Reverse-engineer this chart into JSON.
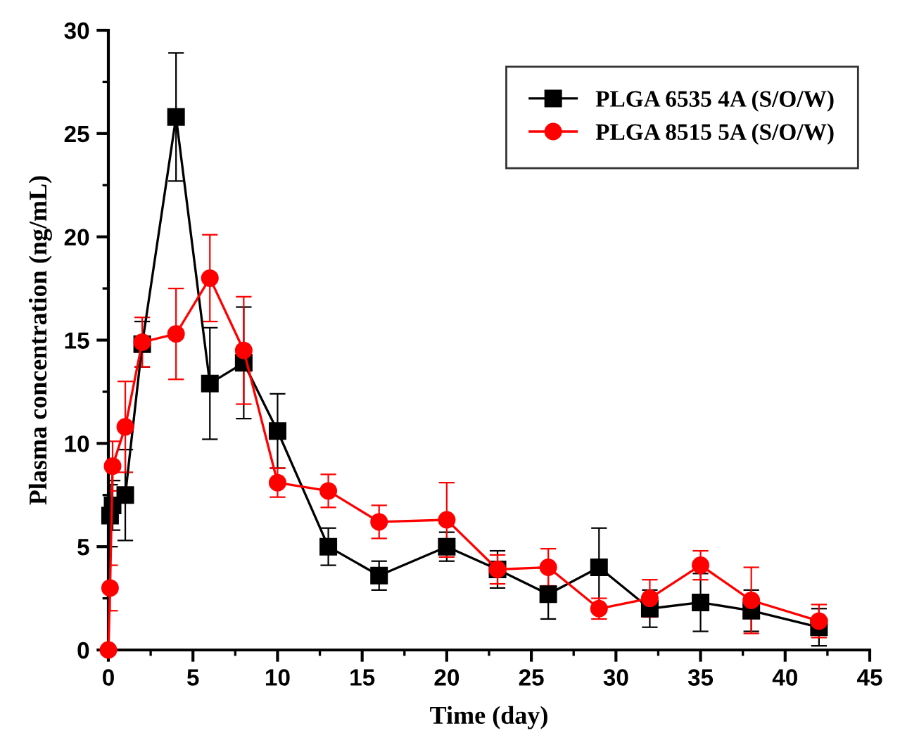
{
  "chart_data": {
    "type": "line",
    "xlabel": "Time (day)",
    "ylabel": "Plasma concentration (ng/mL)",
    "xlim": [
      0,
      45
    ],
    "ylim": [
      0,
      30
    ],
    "xticks": [
      0,
      5,
      10,
      15,
      20,
      25,
      30,
      35,
      40,
      45
    ],
    "yticks": [
      0,
      5,
      10,
      15,
      20,
      25,
      30
    ],
    "grid": false,
    "legend": "top right",
    "series": [
      {
        "name": "PLGA 6535 4A (S/O/W)",
        "color": "#000000",
        "marker": "square",
        "x": [
          0.1,
          0.25,
          1,
          2,
          4,
          6,
          8,
          10,
          13,
          16,
          20,
          23,
          26,
          29,
          32,
          35,
          38,
          42
        ],
        "values": [
          6.5,
          7.0,
          7.5,
          14.8,
          25.8,
          12.9,
          13.9,
          10.6,
          5.0,
          3.6,
          5.0,
          3.9,
          2.7,
          4.0,
          2.0,
          2.3,
          1.9,
          1.1
        ],
        "errors": [
          1.5,
          1.2,
          2.2,
          1.1,
          3.1,
          2.7,
          2.7,
          1.8,
          0.9,
          0.7,
          0.7,
          0.9,
          1.2,
          1.9,
          0.9,
          1.4,
          1.0,
          0.9
        ]
      },
      {
        "name": "PLGA 8515 5A (S/O/W)",
        "color": "#ff0000",
        "marker": "circle",
        "x": [
          0,
          0.1,
          0.25,
          1,
          2,
          4,
          6,
          8,
          10,
          13,
          16,
          20,
          23,
          26,
          29,
          32,
          35,
          38,
          42
        ],
        "values": [
          0,
          3.0,
          8.9,
          10.8,
          14.9,
          15.3,
          18.0,
          14.5,
          8.1,
          7.7,
          6.2,
          6.3,
          3.9,
          4.0,
          2.0,
          2.5,
          4.1,
          2.4,
          1.4
        ],
        "errors": [
          null,
          1.1,
          1.2,
          2.2,
          1.2,
          2.2,
          2.1,
          2.6,
          0.7,
          0.8,
          0.8,
          1.8,
          0.7,
          0.9,
          0.5,
          0.9,
          0.7,
          1.6,
          0.8
        ]
      }
    ]
  }
}
